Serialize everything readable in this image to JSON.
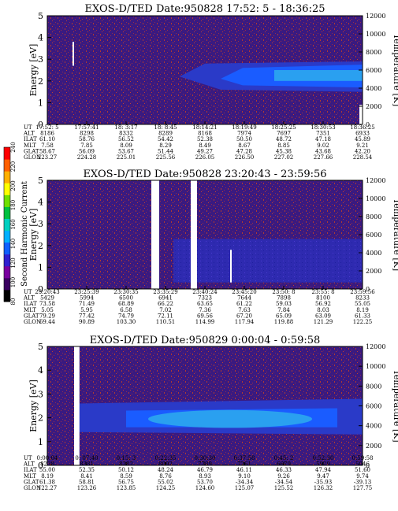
{
  "chart_data": [
    {
      "type": "heatmap",
      "title": "EXOS-D/TED   Date:950828  17:52: 5 - 18:36:25",
      "ylabel": "Energy [eV]",
      "y2label": "Temperature [K]",
      "ylim": [
        0,
        5
      ],
      "y2lim": [
        0,
        12000
      ],
      "yticks": [
        "0",
        "1",
        "2",
        "3",
        "4",
        "5"
      ],
      "y2ticks": [
        "0",
        "2000",
        "4000",
        "6000",
        "8000",
        "10000",
        "12000"
      ],
      "gaps": [],
      "rows": [
        {
          "label": "UT",
          "values": [
            "17:52: 5",
            "17:57:41",
            "18: 3:17",
            "18: 8:45",
            "18:14:21",
            "18:19:49",
            "18:25:25",
            "18:30:53",
            "18:36:25"
          ]
        },
        {
          "label": "ALT",
          "values": [
            "8186",
            "8298",
            "8332",
            "8289",
            "8168",
            "7974",
            "7697",
            "7351",
            "6933"
          ]
        },
        {
          "label": "ILAT",
          "values": [
            "61.10",
            "58.76",
            "56.52",
            "54.42",
            "52.38",
            "50.50",
            "48.72",
            "47.18",
            "45.89"
          ]
        },
        {
          "label": "MLT",
          "values": [
            "7.58",
            "7.85",
            "8.09",
            "8.29",
            "8.49",
            "8.67",
            "8.85",
            "9.02",
            "9.21"
          ]
        },
        {
          "label": "GLAT",
          "values": [
            "58.67",
            "56.09",
            "53.67",
            "51.44",
            "49.27",
            "47.28",
            "45.38",
            "43.68",
            "42.20"
          ]
        },
        {
          "label": "GLON",
          "values": [
            "223.27",
            "224.28",
            "225.01",
            "225.56",
            "226.05",
            "226.50",
            "227.02",
            "227.66",
            "228.54"
          ]
        }
      ]
    },
    {
      "type": "heatmap",
      "title": "EXOS-D/TED   Date:950828  23:20:43 - 23:59:56",
      "ylabel": "Energy [eV]",
      "y2label": "Temperature [K]",
      "ylim": [
        0,
        5
      ],
      "y2lim": [
        0,
        12000
      ],
      "yticks": [
        "0",
        "1",
        "2",
        "3",
        "4",
        "5"
      ],
      "y2ticks": [
        "0",
        "2000",
        "4000",
        "6000",
        "8000",
        "10000",
        "12000"
      ],
      "gaps": [
        [
          0.33,
          0.355
        ],
        [
          0.455,
          0.475
        ]
      ],
      "rows": [
        {
          "label": "UT",
          "values": [
            "23:20:43",
            "23:25:39",
            "23:30:35",
            "23:35:29",
            "23:40:24",
            "23:45:20",
            "23:50: 8",
            "23:55: 8",
            "23:59:56"
          ]
        },
        {
          "label": "ALT",
          "values": [
            "5429",
            "5994",
            "6500",
            "6941",
            "7323",
            "7644",
            "7898",
            "8100",
            "8233"
          ]
        },
        {
          "label": "ILAT",
          "values": [
            "73.58",
            "71.49",
            "68.89",
            "66.22",
            "63.65",
            "61.22",
            "59.03",
            "56.92",
            "55.05"
          ]
        },
        {
          "label": "MLT",
          "values": [
            "5.05",
            "5.95",
            "6.58",
            "7.02",
            "7.36",
            "7.63",
            "7.84",
            "8.03",
            "8.19"
          ]
        },
        {
          "label": "GLAT",
          "values": [
            "79.29",
            "77.42",
            "74.79",
            "72.11",
            "69.56",
            "67.20",
            "65.09",
            "63.09",
            "61.33"
          ]
        },
        {
          "label": "GLON",
          "values": [
            "69.44",
            "90.89",
            "103.30",
            "110.51",
            "114.99",
            "117.94",
            "119.88",
            "121.29",
            "122.25"
          ]
        }
      ]
    },
    {
      "type": "heatmap",
      "title": "EXOS-D/TED   Date:950829  0:00:04 - 0:59:58",
      "ylabel": "Energy [eV]",
      "y2label": "Temperature [K]",
      "ylim": [
        0,
        5
      ],
      "y2lim": [
        0,
        12000
      ],
      "yticks": [
        "0",
        "1",
        "2",
        "3",
        "4",
        "5"
      ],
      "y2ticks": [
        "0",
        "2000",
        "4000",
        "6000",
        "8000",
        "10000",
        "12000"
      ],
      "gaps": [
        [
          0.085,
          0.102
        ]
      ],
      "rows": [
        {
          "label": "UT",
          "values": [
            "0:00:04",
            "0: 07:40",
            "0:15: 3",
            "0:22:35",
            "0:30:30",
            "0:37:58",
            "0:45: 2",
            "0:52:30",
            "0:59:58"
          ]
        },
        {
          "label": "ALT",
          "values": [
            "8238",
            "8331",
            "8282",
            "8092",
            "7739",
            "7261",
            "6679",
            "5929",
            "5046"
          ]
        },
        {
          "label": "ILAT",
          "values": [
            "55.00",
            "52.35",
            "50.12",
            "48.24",
            "46.79",
            "46.11",
            "46.33",
            "47.94",
            "51.60"
          ]
        },
        {
          "label": "MLT",
          "values": [
            "8.19",
            "8.41",
            "8.59",
            "8.76",
            "8.93",
            "9.10",
            "9.26",
            "9.47",
            "9.74"
          ]
        },
        {
          "label": "GLAT",
          "values": [
            "61.38",
            "58.81",
            "56.75",
            "55.02",
            "53.70",
            "-34.34",
            "-34.54",
            "-35.93",
            "-39.13"
          ]
        },
        {
          "label": "GLON",
          "values": [
            "122.27",
            "123.26",
            "123.85",
            "124.25",
            "124.60",
            "125.07",
            "125.52",
            "126.32",
            "127.75"
          ]
        }
      ]
    }
  ],
  "colorbar": {
    "label": "Second Harmonic Current",
    "ticks": [
      "80",
      "100",
      "120",
      "140",
      "160",
      "180",
      "200",
      "220",
      "240"
    ],
    "colors": [
      "#000000",
      "#3a0060",
      "#7a00a0",
      "#3020d0",
      "#1060ff",
      "#00b0ff",
      "#00d0c0",
      "#00c040",
      "#70e000",
      "#ffff00",
      "#ffb000",
      "#ff6000",
      "#ff0000"
    ]
  },
  "colors": {
    "background": "#3a1a80",
    "speck": "#b03a30",
    "band_low": "#2a3ac8",
    "band_mid": "#1a5cff",
    "band_core": "#2aa0f0"
  }
}
